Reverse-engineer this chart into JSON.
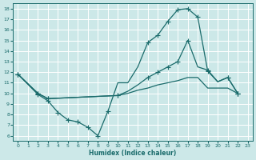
{
  "bg_color": "#cce8e8",
  "grid_color": "#ffffff",
  "line_color": "#1a6b6b",
  "xlabel": "Humidex (Indice chaleur)",
  "xlim": [
    -0.5,
    23.5
  ],
  "ylim": [
    5.5,
    18.5
  ],
  "yticks": [
    6,
    7,
    8,
    9,
    10,
    11,
    12,
    13,
    14,
    15,
    16,
    17,
    18
  ],
  "xticks": [
    0,
    1,
    2,
    3,
    4,
    5,
    6,
    7,
    8,
    9,
    10,
    11,
    12,
    13,
    14,
    15,
    16,
    17,
    18,
    19,
    20,
    21,
    22,
    23
  ],
  "line1_x": [
    0,
    2,
    3,
    4,
    5,
    6,
    7,
    8,
    9,
    10,
    11,
    12,
    13,
    14,
    15,
    16,
    17,
    18,
    19,
    20,
    21,
    22
  ],
  "line1_y": [
    11.8,
    9.9,
    9.3,
    8.2,
    7.5,
    7.3,
    6.8,
    6.0,
    8.3,
    11.0,
    11.0,
    12.5,
    14.8,
    15.5,
    16.8,
    17.9,
    18.0,
    17.2,
    12.1,
    11.1,
    11.5,
    10.0
  ],
  "line1_markers_x": [
    0,
    2,
    3,
    4,
    5,
    6,
    7,
    8,
    9,
    13,
    14,
    15,
    16,
    17,
    18,
    19,
    21,
    22
  ],
  "line1_markers_y": [
    11.8,
    9.9,
    9.3,
    8.2,
    7.5,
    7.3,
    6.8,
    6.0,
    8.3,
    14.8,
    15.5,
    16.8,
    17.9,
    18.0,
    17.2,
    12.1,
    11.5,
    10.0
  ],
  "line2_x": [
    0,
    2,
    3,
    10,
    11,
    12,
    13,
    14,
    15,
    16,
    17,
    18,
    19,
    20,
    21,
    22
  ],
  "line2_y": [
    11.8,
    10.0,
    9.5,
    9.8,
    10.2,
    10.8,
    11.5,
    12.0,
    12.5,
    13.0,
    15.0,
    12.5,
    12.2,
    11.1,
    11.5,
    10.0
  ],
  "line2_markers_x": [
    0,
    2,
    3,
    10,
    13,
    14,
    15,
    16,
    17,
    19,
    21,
    22
  ],
  "line2_markers_y": [
    11.8,
    10.0,
    9.5,
    9.8,
    11.5,
    12.0,
    12.5,
    13.0,
    15.0,
    12.2,
    11.5,
    10.0
  ],
  "line3_x": [
    0,
    2,
    3,
    10,
    11,
    12,
    13,
    14,
    15,
    16,
    17,
    18,
    19,
    20,
    21,
    22
  ],
  "line3_y": [
    11.8,
    10.0,
    9.5,
    9.8,
    10.0,
    10.3,
    10.5,
    10.8,
    11.0,
    11.2,
    11.5,
    11.5,
    10.5,
    10.5,
    10.5,
    10.0
  ],
  "line3_markers_x": [
    0,
    2,
    3,
    10,
    22
  ],
  "line3_markers_y": [
    11.8,
    10.0,
    9.5,
    9.8,
    10.0
  ]
}
